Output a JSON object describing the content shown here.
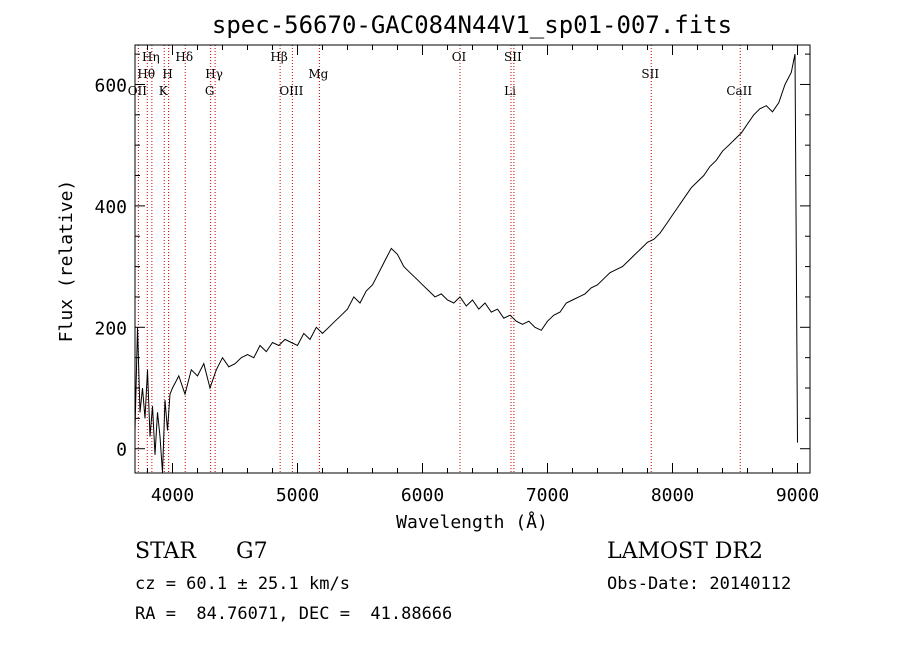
{
  "chart_data": {
    "type": "line",
    "title": "spec-56670-GAC084N44V1_sp01-007.fits",
    "xlabel": "Wavelength (Å)",
    "ylabel": "Flux (relative)",
    "xlim": [
      3700,
      9100
    ],
    "ylim": [
      -40,
      665
    ],
    "x_ticks": [
      4000,
      5000,
      6000,
      7000,
      8000,
      9000
    ],
    "y_ticks": [
      0,
      200,
      400,
      600
    ],
    "grid": false,
    "series": [
      {
        "x": [
          3700,
          3720,
          3740,
          3760,
          3780,
          3800,
          3820,
          3840,
          3860,
          3880,
          3900,
          3920,
          3940,
          3960,
          3980,
          4000,
          4050,
          4100,
          4150,
          4200,
          4250,
          4300,
          4350,
          4400,
          4450,
          4500,
          4550,
          4600,
          4650,
          4700,
          4750,
          4800,
          4850,
          4900,
          4950,
          5000,
          5050,
          5100,
          5150,
          5200,
          5250,
          5300,
          5350,
          5400,
          5450,
          5500,
          5550,
          5600,
          5650,
          5700,
          5750,
          5800,
          5850,
          5900,
          5950,
          6000,
          6050,
          6100,
          6150,
          6200,
          6250,
          6300,
          6350,
          6400,
          6450,
          6500,
          6550,
          6600,
          6650,
          6700,
          6750,
          6800,
          6850,
          6900,
          6950,
          7000,
          7050,
          7100,
          7150,
          7200,
          7250,
          7300,
          7350,
          7400,
          7450,
          7500,
          7550,
          7600,
          7650,
          7700,
          7750,
          7800,
          7850,
          7900,
          7950,
          8000,
          8050,
          8100,
          8150,
          8200,
          8250,
          8300,
          8350,
          8400,
          8450,
          8500,
          8550,
          8600,
          8650,
          8700,
          8750,
          8800,
          8850,
          8900,
          8950,
          8980,
          9000
        ],
        "y": [
          30,
          200,
          60,
          100,
          50,
          130,
          20,
          70,
          -10,
          60,
          20,
          -40,
          80,
          30,
          90,
          100,
          120,
          90,
          130,
          120,
          140,
          100,
          130,
          150,
          135,
          140,
          150,
          155,
          150,
          170,
          160,
          175,
          170,
          180,
          175,
          170,
          190,
          180,
          200,
          190,
          200,
          210,
          220,
          230,
          250,
          240,
          260,
          270,
          290,
          310,
          330,
          320,
          300,
          290,
          280,
          270,
          260,
          250,
          255,
          245,
          240,
          250,
          235,
          245,
          230,
          240,
          225,
          230,
          215,
          220,
          210,
          205,
          210,
          200,
          195,
          210,
          220,
          225,
          240,
          245,
          250,
          255,
          265,
          270,
          280,
          290,
          295,
          300,
          310,
          320,
          330,
          340,
          345,
          355,
          370,
          385,
          400,
          415,
          430,
          440,
          450,
          465,
          475,
          490,
          500,
          510,
          520,
          535,
          550,
          560,
          565,
          555,
          570,
          600,
          620,
          650,
          10
        ]
      }
    ],
    "line_markers": [
      {
        "wave": 3727,
        "label": "OII",
        "row": 3
      },
      {
        "wave": 3798,
        "label": "Hθ",
        "row": 2
      },
      {
        "wave": 3835,
        "label": "Hη",
        "row": 1
      },
      {
        "wave": 3934,
        "label": "K",
        "row": 3
      },
      {
        "wave": 3969,
        "label": "H",
        "row": 2
      },
      {
        "wave": 4102,
        "label": "Hδ",
        "row": 1
      },
      {
        "wave": 4305,
        "label": "G",
        "row": 3
      },
      {
        "wave": 4341,
        "label": "Hγ",
        "row": 2
      },
      {
        "wave": 4861,
        "label": "Hβ",
        "row": 1
      },
      {
        "wave": 4959,
        "label": "OIII",
        "row": 3
      },
      {
        "wave": 5175,
        "label": "Mg",
        "row": 2
      },
      {
        "wave": 6300,
        "label": "OI",
        "row": 1
      },
      {
        "wave": 6708,
        "label": "Li",
        "row": 3
      },
      {
        "wave": 6731,
        "label": "SII",
        "row": 1
      },
      {
        "wave": 7830,
        "label": "SII",
        "row": 2
      },
      {
        "wave": 8542,
        "label": "CaII",
        "row": 3
      }
    ],
    "colors": {
      "spectrum": "#000000",
      "marker": "#cc0000"
    }
  },
  "info": {
    "class": "STAR",
    "subclass": "G7",
    "survey": "LAMOST DR2",
    "cz": "cz = 60.1 ± 25.1 km/s",
    "obs_date": "Obs-Date: 20140112",
    "radec": "RA =  84.76071, DEC =  41.88666"
  }
}
